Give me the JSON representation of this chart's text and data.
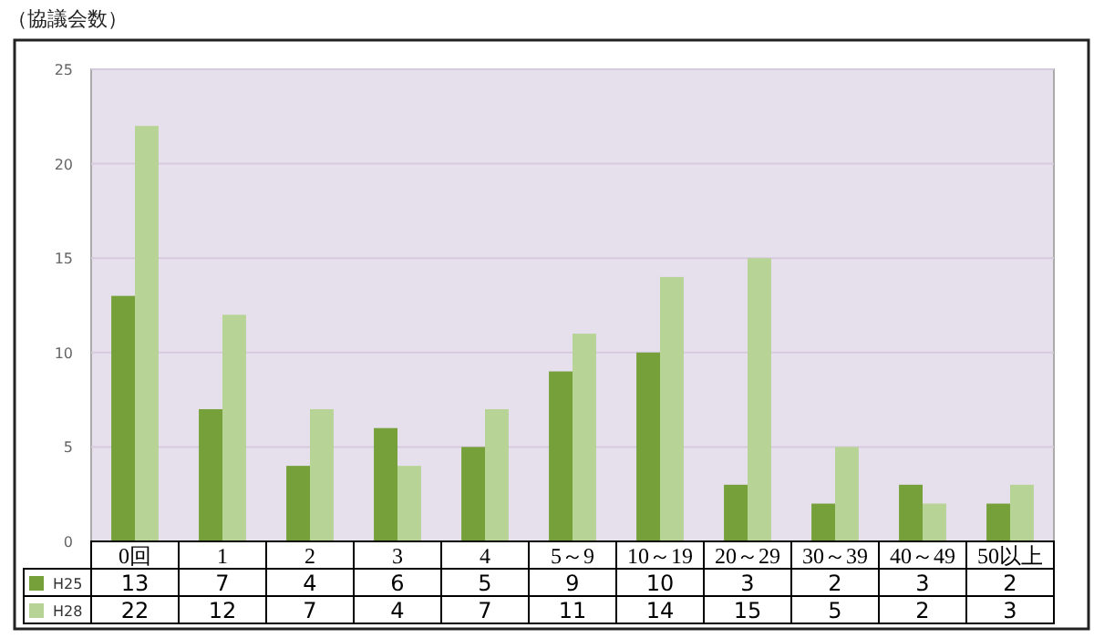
{
  "chart_data": {
    "type": "bar",
    "ylabel": "（協議会数）",
    "categories": [
      "0回",
      "1",
      "2",
      "3",
      "4",
      "5～9",
      "10～19",
      "20～29",
      "30～39",
      "40～49",
      "50以上"
    ],
    "series": [
      {
        "name": "H25",
        "color": "#76a03a",
        "values": [
          13,
          7,
          4,
          6,
          5,
          9,
          10,
          3,
          2,
          3,
          2
        ]
      },
      {
        "name": "H28",
        "color": "#b8d396",
        "values": [
          22,
          12,
          7,
          4,
          7,
          11,
          14,
          15,
          5,
          2,
          3
        ]
      }
    ],
    "ylim": [
      0,
      25
    ],
    "yticks": [
      0,
      5,
      10,
      15,
      20,
      25
    ],
    "grid": "y",
    "data_labels": true,
    "legend": "bottom left"
  }
}
